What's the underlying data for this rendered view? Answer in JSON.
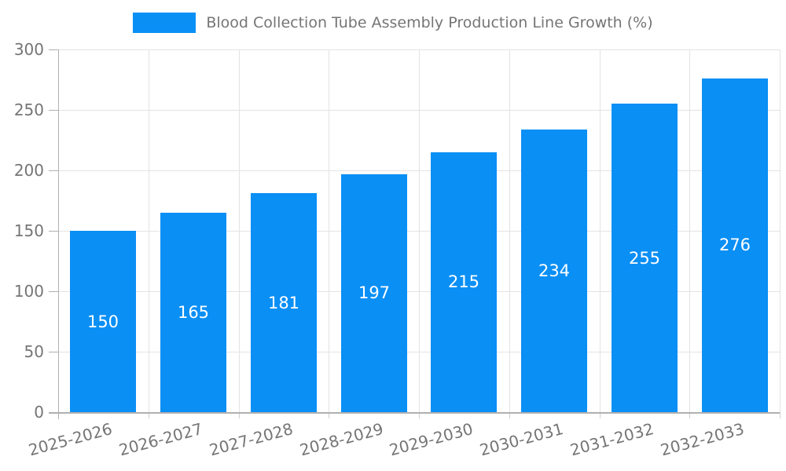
{
  "chart_data": {
    "type": "bar",
    "title": "Blood Collection Tube Assembly Production Line Growth (%)",
    "legend": {
      "label": "Blood Collection Tube Assembly Production Line Growth (%)",
      "position": "top"
    },
    "categories": [
      "2025-2026",
      "2026-2027",
      "2027-2028",
      "2028-2029",
      "2029-2030",
      "2030-2031",
      "2031-2032",
      "2032-2033"
    ],
    "series": [
      {
        "name": "Blood Collection Tube Assembly Production Line Growth (%)",
        "color": "#0a8ff5",
        "values": [
          150,
          165,
          181,
          197,
          215,
          234,
          255,
          276
        ]
      }
    ],
    "value_labels": {
      "show": true,
      "position": "center",
      "color": "#ffffff"
    },
    "xlabel": "",
    "ylabel": "",
    "ylim": [
      0,
      300
    ],
    "yticks": [
      0,
      50,
      100,
      150,
      200,
      250,
      300
    ],
    "grid": true
  },
  "colors": {
    "bar": "#0a8ff5",
    "grid": "#e3e3e3",
    "axis": "#b0b0b0",
    "tick_label": "#757575",
    "legend_text": "#757575",
    "background": "#ffffff"
  }
}
